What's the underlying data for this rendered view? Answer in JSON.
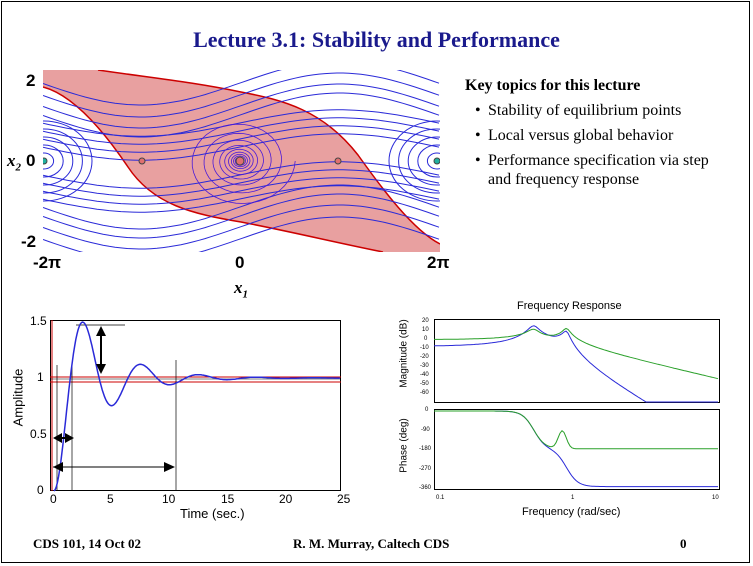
{
  "title": "Lecture 3.1: Stability and Performance",
  "topics": {
    "heading": "Key topics for this lecture",
    "items": [
      "Stability of equilibrium points",
      "Local versus global behavior",
      "Performance specification via step and frequency response"
    ]
  },
  "phase_plot": {
    "y_ticks": [
      "2",
      "0",
      "-2"
    ],
    "x_ticks": [
      "-2π",
      "0",
      "2π"
    ],
    "x_label": "x",
    "x_label_sub": "1",
    "y_label": "x",
    "y_label_sub": "2"
  },
  "step_plot": {
    "y_ticks": [
      "1.5",
      "1",
      "0.5",
      "0"
    ],
    "x_ticks": [
      "0",
      "5",
      "10",
      "15",
      "20",
      "25"
    ],
    "x_label": "Time (sec.)",
    "y_label": "Amplitude"
  },
  "freq_plot": {
    "title": "Frequency Response",
    "mag_label": "Magnitude (dB)",
    "phase_label": "Phase (deg)",
    "x_label": "Frequency (rad/sec)",
    "mag_ticks": [
      "20",
      "10",
      "0",
      "-10",
      "-20",
      "-30",
      "-40",
      "-50",
      "-60"
    ],
    "phase_ticks": [
      "0",
      "-90",
      "-180",
      "-270",
      "-360"
    ],
    "x_ticks": [
      "0.1",
      "1",
      "10"
    ]
  },
  "footer": {
    "left": "CDS 101, 14 Oct 02",
    "center": "R. M. Murray, Caltech CDS",
    "right": "0"
  },
  "colors": {
    "title": "#1a1a8c",
    "stream": "#2a2ad8",
    "region": "#e8a0a0",
    "separatrix": "#cc0000",
    "step_response": "#2a2ad8",
    "bound": "#cc0000",
    "green_curve": "#2aa02a"
  }
}
